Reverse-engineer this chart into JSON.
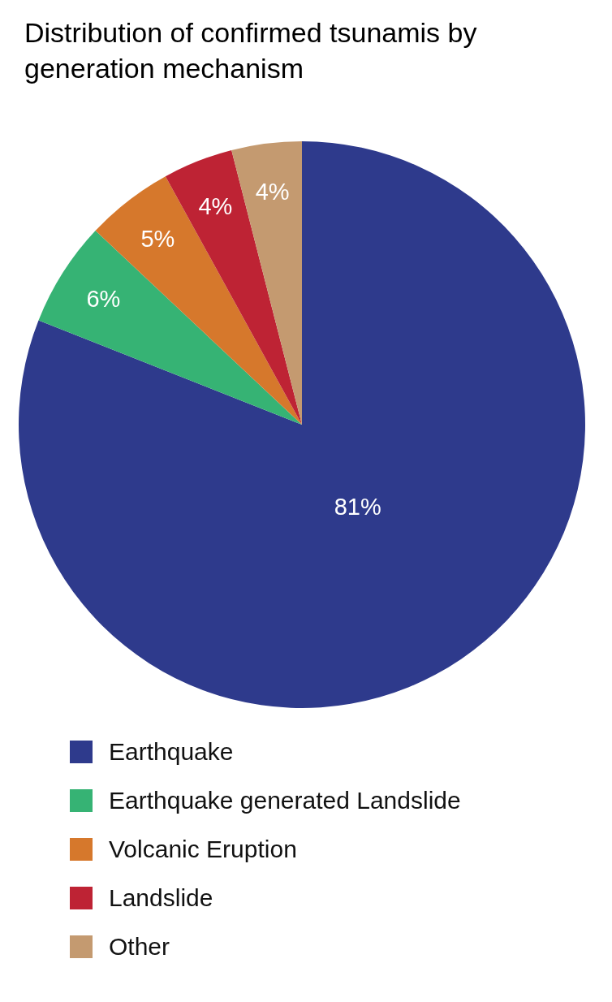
{
  "chart_data": {
    "type": "pie",
    "title": "Distribution of confirmed tsunamis by generation mechanism",
    "categories": [
      "Earthquake",
      "Earthquake generated Landslide",
      "Volcanic Eruption",
      "Landslide",
      "Other"
    ],
    "values": [
      81,
      6,
      5,
      4,
      4
    ],
    "value_labels": [
      "81%",
      "6%",
      "5%",
      "4%",
      "4%"
    ],
    "colors": [
      "#2e3a8c",
      "#36b374",
      "#d6782c",
      "#be2334",
      "#c49a70"
    ],
    "legend": "bottom"
  }
}
